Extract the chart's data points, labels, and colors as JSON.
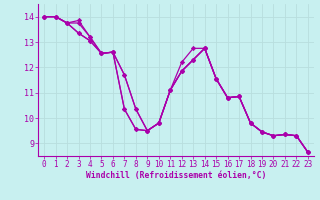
{
  "xlabel": "Windchill (Refroidissement éolien,°C)",
  "bg_color": "#c8f0f0",
  "line_color": "#aa00aa",
  "grid_color": "#b8dede",
  "xlim": [
    -0.5,
    23.5
  ],
  "ylim": [
    8.5,
    14.5
  ],
  "yticks": [
    9,
    10,
    11,
    12,
    13,
    14
  ],
  "xticks": [
    0,
    1,
    2,
    3,
    4,
    5,
    6,
    7,
    8,
    9,
    10,
    11,
    12,
    13,
    14,
    15,
    16,
    17,
    18,
    19,
    20,
    21,
    22,
    23
  ],
  "series": [
    [
      14.0,
      14.0,
      13.75,
      13.85,
      13.2,
      12.55,
      12.6,
      10.35,
      9.55,
      9.5,
      9.8,
      11.1,
      11.85,
      12.3,
      12.75,
      11.55,
      10.8,
      10.85,
      9.8,
      9.45,
      9.3,
      9.35,
      9.3,
      8.65
    ],
    [
      14.0,
      14.0,
      13.75,
      13.35,
      13.05,
      12.55,
      12.6,
      11.7,
      10.35,
      9.5,
      9.8,
      11.1,
      11.85,
      12.3,
      12.75,
      11.55,
      10.8,
      10.85,
      9.8,
      9.45,
      9.3,
      9.35,
      9.3,
      8.65
    ],
    [
      14.0,
      14.0,
      13.75,
      13.35,
      13.05,
      12.55,
      12.6,
      11.7,
      10.35,
      9.5,
      9.8,
      11.1,
      11.85,
      12.3,
      12.75,
      11.55,
      10.8,
      10.85,
      9.8,
      9.45,
      9.3,
      9.35,
      9.3,
      8.65
    ],
    [
      14.0,
      14.0,
      13.75,
      13.75,
      13.2,
      12.55,
      12.6,
      10.35,
      9.55,
      9.5,
      9.8,
      11.1,
      12.2,
      12.75,
      12.75,
      11.55,
      10.8,
      10.85,
      9.8,
      9.45,
      9.3,
      9.35,
      9.3,
      8.65
    ]
  ],
  "marker": "D",
  "marker_size": 2.2,
  "line_width": 0.9,
  "tick_fontsize": 5.5,
  "xlabel_fontsize": 5.8
}
